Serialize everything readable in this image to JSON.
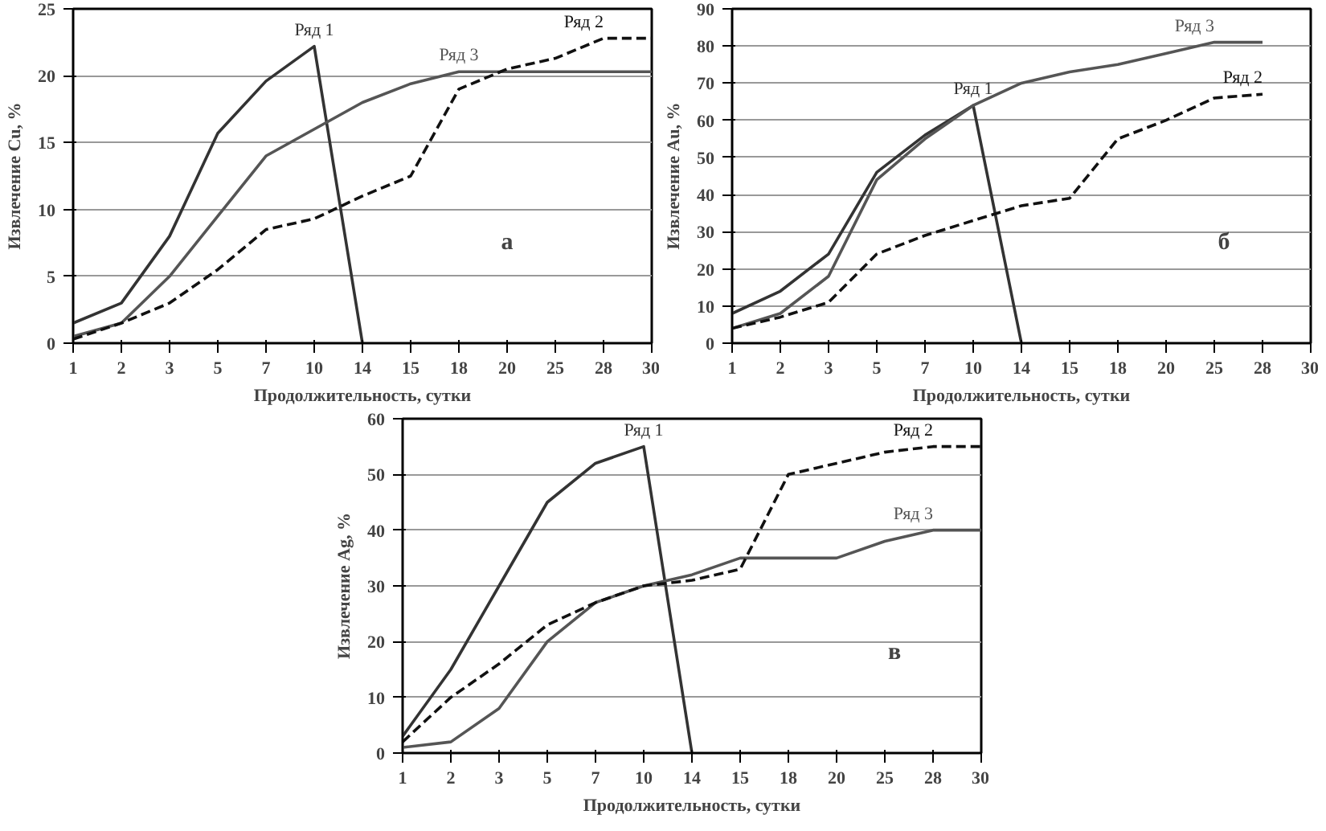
{
  "chart_data": [
    {
      "type": "line",
      "xlabel": "Продолжительность, сутки",
      "ylabel": "Извлечение Cu, %",
      "annotations": [
        "а"
      ],
      "categories": [
        "1",
        "2",
        "3",
        "5",
        "7",
        "10",
        "14",
        "15",
        "18",
        "20",
        "25",
        "28",
        "30"
      ],
      "ylim": [
        0,
        25
      ],
      "yticks": [
        0,
        5,
        10,
        15,
        20,
        25
      ],
      "grid": "y",
      "marker": "none",
      "series": [
        {
          "name": "Ряд 1",
          "color": "#333333",
          "line_style": "solid",
          "values": [
            1.5,
            3,
            8,
            15.7,
            19.6,
            22.2,
            0,
            null,
            null,
            null,
            null,
            null,
            null
          ]
        },
        {
          "name": "Ряд 3",
          "color": "#555555",
          "line_style": "solid",
          "values": [
            0.5,
            1.5,
            5,
            9.5,
            14,
            16,
            18,
            19.4,
            20.3,
            20.3,
            20.3,
            20.3,
            20.3
          ]
        },
        {
          "name": "Ряд 2",
          "color": "#111111",
          "line_style": "dashed",
          "values": [
            0.3,
            1.5,
            3,
            5.5,
            8.5,
            9.3,
            11,
            12.5,
            19,
            20.5,
            21.3,
            22.8,
            22.8
          ]
        }
      ]
    },
    {
      "type": "line",
      "xlabel": "Продолжительность, сутки",
      "ylabel": "Извлечение Au, %",
      "annotations": [
        "б"
      ],
      "categories": [
        "1",
        "2",
        "3",
        "5",
        "7",
        "10",
        "14",
        "15",
        "18",
        "20",
        "25",
        "28",
        "30"
      ],
      "ylim": [
        0,
        90
      ],
      "yticks": [
        0,
        10,
        20,
        30,
        40,
        50,
        60,
        70,
        80,
        90
      ],
      "grid": "y",
      "marker": "none",
      "series": [
        {
          "name": "Ряд 1",
          "color": "#333333",
          "line_style": "solid",
          "values": [
            8,
            14,
            24,
            46,
            56,
            64,
            0,
            null,
            null,
            null,
            null,
            null,
            null
          ]
        },
        {
          "name": "Ряд 3",
          "color": "#555555",
          "line_style": "solid",
          "values": [
            4,
            8,
            18,
            44,
            55,
            64,
            70,
            73,
            75,
            78,
            81,
            81,
            null
          ]
        },
        {
          "name": "Ряд 2",
          "color": "#111111",
          "line_style": "dashed",
          "values": [
            4,
            7,
            11,
            24,
            29,
            33,
            37,
            39,
            55,
            60,
            66,
            67,
            null
          ]
        }
      ]
    },
    {
      "type": "line",
      "xlabel": "Продолжительность, сутки",
      "ylabel": "Извлечение Ag, %",
      "annotations": [
        "в"
      ],
      "categories": [
        "1",
        "2",
        "3",
        "5",
        "7",
        "10",
        "14",
        "15",
        "18",
        "20",
        "25",
        "28",
        "30"
      ],
      "ylim": [
        0,
        60
      ],
      "yticks": [
        0,
        10,
        20,
        30,
        40,
        50,
        60
      ],
      "grid": "y",
      "marker": "none",
      "series": [
        {
          "name": "Ряд 1",
          "color": "#333333",
          "line_style": "solid",
          "values": [
            3,
            15,
            30,
            45,
            52,
            55,
            0,
            null,
            null,
            null,
            null,
            null,
            null
          ]
        },
        {
          "name": "Ряд 3",
          "color": "#555555",
          "line_style": "solid",
          "values": [
            1,
            2,
            8,
            20,
            27,
            30,
            32,
            35,
            35,
            35,
            38,
            40,
            40
          ]
        },
        {
          "name": "Ряд 2",
          "color": "#111111",
          "line_style": "dashed",
          "values": [
            2,
            10,
            16,
            23,
            27,
            30,
            31,
            33,
            50,
            52,
            54,
            55,
            55
          ]
        }
      ]
    }
  ]
}
